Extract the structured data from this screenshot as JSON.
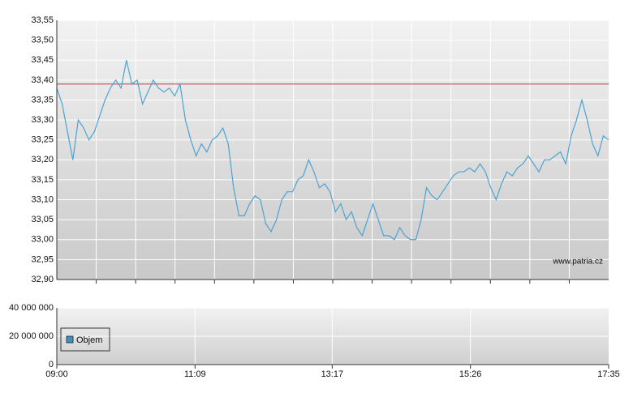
{
  "chart_data": {
    "type": "line",
    "x": [
      "09:00",
      "09:05",
      "09:10",
      "09:15",
      "09:20",
      "09:25",
      "09:30",
      "09:35",
      "09:40",
      "09:45",
      "09:50",
      "09:55",
      "10:00",
      "10:05",
      "10:10",
      "10:15",
      "10:20",
      "10:25",
      "10:30",
      "10:35",
      "10:40",
      "10:45",
      "10:50",
      "10:55",
      "11:00",
      "11:05",
      "11:10",
      "11:15",
      "11:20",
      "11:25",
      "11:30",
      "11:35",
      "11:40",
      "11:45",
      "11:50",
      "11:55",
      "12:00",
      "12:05",
      "12:10",
      "12:15",
      "12:20",
      "12:25",
      "12:30",
      "12:35",
      "12:40",
      "12:45",
      "12:50",
      "12:55",
      "13:00",
      "13:05",
      "13:10",
      "13:15",
      "13:20",
      "13:25",
      "13:30",
      "13:35",
      "13:40",
      "13:45",
      "13:50",
      "13:55",
      "14:00",
      "14:05",
      "14:10",
      "14:15",
      "14:20",
      "14:25",
      "14:30",
      "14:35",
      "14:40",
      "14:45",
      "14:50",
      "14:55",
      "15:00",
      "15:05",
      "15:10",
      "15:15",
      "15:20",
      "15:25",
      "15:30",
      "15:35",
      "15:40",
      "15:45",
      "15:50",
      "15:55",
      "16:00",
      "16:05",
      "16:10",
      "16:15",
      "16:20",
      "16:25",
      "16:30",
      "16:35",
      "16:40",
      "16:45",
      "16:50",
      "16:55",
      "17:00",
      "17:05",
      "17:10",
      "17:15",
      "17:20",
      "17:25",
      "17:30",
      "17:35"
    ],
    "values": [
      33.38,
      33.34,
      33.27,
      33.2,
      33.3,
      33.28,
      33.25,
      33.27,
      33.31,
      33.35,
      33.38,
      33.4,
      33.38,
      33.45,
      33.39,
      33.4,
      33.34,
      33.37,
      33.4,
      33.38,
      33.37,
      33.38,
      33.36,
      33.39,
      33.3,
      33.25,
      33.21,
      33.24,
      33.22,
      33.25,
      33.26,
      33.28,
      33.24,
      33.13,
      33.06,
      33.06,
      33.09,
      33.11,
      33.1,
      33.04,
      33.02,
      33.05,
      33.1,
      33.12,
      33.12,
      33.15,
      33.16,
      33.2,
      33.17,
      33.13,
      33.14,
      33.12,
      33.07,
      33.09,
      33.05,
      33.07,
      33.03,
      33.01,
      33.05,
      33.09,
      33.05,
      33.01,
      33.01,
      33.0,
      33.03,
      33.01,
      33.0,
      33.0,
      33.05,
      33.13,
      33.11,
      33.1,
      33.12,
      33.14,
      33.16,
      33.17,
      33.17,
      33.18,
      33.17,
      33.19,
      33.17,
      33.13,
      33.1,
      33.14,
      33.17,
      33.16,
      33.18,
      33.19,
      33.21,
      33.19,
      33.17,
      33.2,
      33.2,
      33.21,
      33.22,
      33.19,
      33.26,
      33.3,
      33.35,
      33.3,
      33.24,
      33.21,
      33.26,
      33.25
    ],
    "color": "#4ba3d3",
    "xlim": [
      "09:00",
      "17:35"
    ],
    "xticks": [
      "09:00",
      "11:09",
      "13:17",
      "15:26",
      "17:35"
    ],
    "ylim": [
      32.9,
      33.55
    ],
    "yticks": [
      {
        "value": 33.55,
        "label": "33,55"
      },
      {
        "value": 33.5,
        "label": "33,50"
      },
      {
        "value": 33.45,
        "label": "33,45"
      },
      {
        "value": 33.4,
        "label": "33,40"
      },
      {
        "value": 33.35,
        "label": "33,35"
      },
      {
        "value": 33.3,
        "label": "33,30"
      },
      {
        "value": 33.25,
        "label": "33,25"
      },
      {
        "value": 33.2,
        "label": "33,20"
      },
      {
        "value": 33.15,
        "label": "33,15"
      },
      {
        "value": 33.1,
        "label": "33,10"
      },
      {
        "value": 33.05,
        "label": "33,05"
      },
      {
        "value": 33.0,
        "label": "33,00"
      },
      {
        "value": 32.95,
        "label": "32,95"
      },
      {
        "value": 32.9,
        "label": "32,90"
      }
    ],
    "reference_line": {
      "value": 33.39,
      "color": "#cc3333"
    },
    "annotation": "www.patria.cz",
    "grid": true,
    "volume": {
      "name": "Objem",
      "color": "#3d8fc4",
      "ylim": [
        0,
        40000000
      ],
      "yticks": [
        {
          "value": 40000000,
          "label": "40 000 000"
        },
        {
          "value": 20000000,
          "label": "20 000 000"
        },
        0
      ]
    }
  }
}
